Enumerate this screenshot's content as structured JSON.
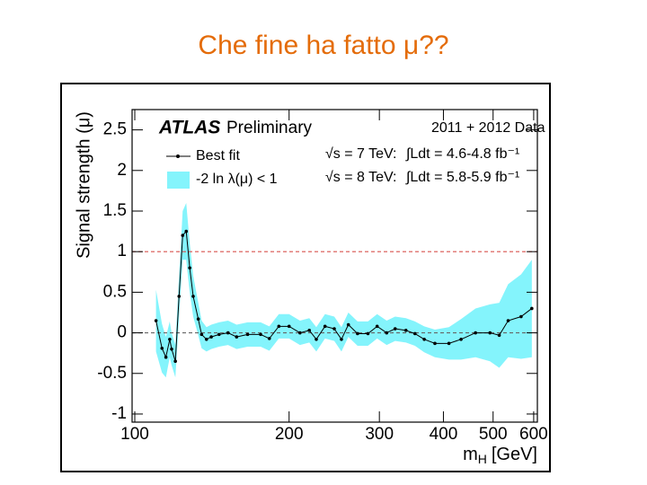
{
  "slide_title": "Che fine ha fatto μ??",
  "chart_data": {
    "type": "line",
    "y_label": "Signal strength (μ)",
    "x_label": {
      "symbol": "m",
      "subscript": "H",
      "unit": "[GeV]"
    },
    "x_scale": "log",
    "xlim": [
      98.8,
      610
    ],
    "xticks": [
      100,
      200,
      300,
      400,
      500,
      600
    ],
    "ylim": [
      -1.1,
      2.75
    ],
    "yticks": [
      -1,
      -0.5,
      0,
      0.5,
      1,
      1.5,
      2,
      2.5
    ],
    "x": [
      110,
      113,
      115,
      117,
      118,
      120,
      122,
      124,
      126,
      128,
      130,
      133,
      135,
      138,
      141,
      146,
      152,
      158,
      166,
      176,
      183,
      191,
      200,
      210,
      219,
      226,
      235,
      245,
      253,
      261,
      272,
      285,
      297,
      310,
      322,
      338,
      352,
      367,
      385,
      410,
      433,
      462,
      493,
      514,
      535,
      567,
      595
    ],
    "series": [
      {
        "name": "Best fit",
        "color": "#000000",
        "values": [
          0.15,
          -0.19,
          -0.3,
          -0.08,
          -0.2,
          -0.35,
          0.45,
          1.2,
          1.25,
          0.8,
          0.45,
          0.17,
          -0.02,
          -0.08,
          -0.05,
          -0.02,
          0,
          -0.05,
          -0.02,
          -0.02,
          -0.07,
          0.08,
          0.08,
          0,
          0.03,
          -0.08,
          0.08,
          0.05,
          -0.08,
          0.1,
          -0.01,
          -0.01,
          0.08,
          0,
          0.05,
          0.03,
          -0.01,
          -0.08,
          -0.13,
          -0.13,
          -0.08,
          0,
          0,
          -0.03,
          0.15,
          0.2,
          0.3
        ]
      }
    ],
    "band": {
      "name": "-2 ln λ(μ) < 1",
      "color": "#84f4fc",
      "lower": [
        -0.23,
        -0.49,
        -0.55,
        -0.3,
        -0.4,
        -0.55,
        0.2,
        0.9,
        0.9,
        0.5,
        0.2,
        -0.03,
        -0.19,
        -0.23,
        -0.2,
        -0.17,
        -0.15,
        -0.2,
        -0.17,
        -0.17,
        -0.22,
        -0.07,
        -0.07,
        -0.15,
        -0.12,
        -0.23,
        -0.07,
        -0.1,
        -0.23,
        -0.05,
        -0.16,
        -0.16,
        -0.07,
        -0.15,
        -0.1,
        -0.12,
        -0.16,
        -0.24,
        -0.3,
        -0.33,
        -0.33,
        -0.3,
        -0.35,
        -0.43,
        -0.3,
        -0.32,
        -0.3
      ],
      "upper": [
        0.53,
        0.11,
        -0.05,
        0.14,
        0,
        -0.15,
        0.7,
        1.5,
        1.6,
        1.1,
        0.7,
        0.37,
        0.15,
        0.07,
        0.1,
        0.13,
        0.15,
        0.1,
        0.13,
        0.13,
        0.08,
        0.23,
        0.23,
        0.15,
        0.18,
        0.07,
        0.23,
        0.2,
        0.07,
        0.25,
        0.14,
        0.14,
        0.23,
        0.15,
        0.2,
        0.18,
        0.14,
        0.08,
        0.04,
        0.07,
        0.17,
        0.3,
        0.35,
        0.37,
        0.6,
        0.72,
        0.9
      ]
    },
    "reference_lines": [
      {
        "value": 1,
        "color": "#d9534f"
      },
      {
        "value": 0,
        "color": "#666666"
      }
    ],
    "annotations": {
      "experiment": "ATLAS",
      "status": "Preliminary",
      "dataset": "2011 + 2012 Data",
      "energy_7": "√s = 7 TeV:",
      "lumi_7": "∫Ldt = 4.6-4.8 fb⁻¹",
      "energy_8": "√s = 8 TeV:",
      "lumi_8": "∫Ldt = 5.8-5.9 fb⁻¹"
    }
  }
}
